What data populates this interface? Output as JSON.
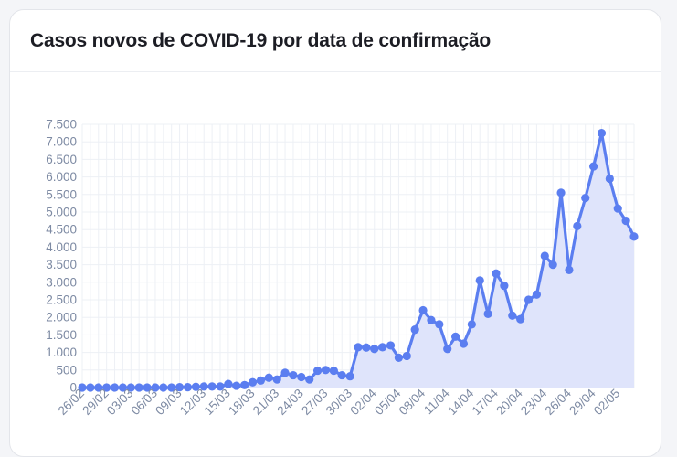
{
  "card": {
    "title": "Casos novos de COVID-19 por data de confirmação"
  },
  "colors": {
    "line": "#5b7ef0",
    "fill": "#dfe4fb",
    "grid": "#edf0f5",
    "tick_text": "#7d8aa3"
  },
  "chart_data": {
    "type": "area",
    "title": "Casos novos de COVID-19 por data de confirmação",
    "xlabel": "",
    "ylabel": "",
    "ylim": [
      0,
      7500
    ],
    "grid": true,
    "legend": "none",
    "y_ticks": [
      0,
      500,
      1000,
      1500,
      2000,
      2500,
      3000,
      3500,
      4000,
      4500,
      5000,
      5500,
      6000,
      6500,
      7000,
      7500
    ],
    "y_tick_labels": [
      "0",
      "500",
      "1.000",
      "1.500",
      "2.000",
      "2.500",
      "3.000",
      "3.500",
      "4.000",
      "4.500",
      "5.000",
      "5.500",
      "6.000",
      "6.500",
      "7.000",
      "7.500"
    ],
    "x_tick_labels": [
      "26/02",
      "29/02",
      "03/03",
      "06/03",
      "09/03",
      "12/03",
      "15/03",
      "18/03",
      "21/03",
      "24/03",
      "27/03",
      "30/03",
      "02/04",
      "05/04",
      "08/04",
      "11/04",
      "14/04",
      "17/04",
      "20/04",
      "23/04",
      "26/04",
      "29/04",
      "02/05"
    ],
    "x_tick_every": 3,
    "x_start": "26/02",
    "x_end": "04/05",
    "series": [
      {
        "values": [
          0,
          0,
          0,
          0,
          0,
          0,
          0,
          0,
          0,
          0,
          0,
          0,
          10,
          10,
          20,
          30,
          30,
          30,
          100,
          50,
          70,
          150,
          200,
          280,
          230,
          420,
          350,
          300,
          230,
          480,
          500,
          480,
          350,
          320,
          1150,
          1140,
          1100,
          1150,
          1200,
          850,
          900,
          1650,
          2200,
          1920,
          1800,
          1100,
          1450,
          1250,
          1800,
          3050,
          2100,
          3250,
          2900,
          2050,
          1950,
          2500,
          2650,
          3750,
          3500,
          5550,
          3350,
          4600,
          5400,
          6300,
          7250,
          5950,
          5100,
          4750,
          4300
        ]
      }
    ]
  }
}
